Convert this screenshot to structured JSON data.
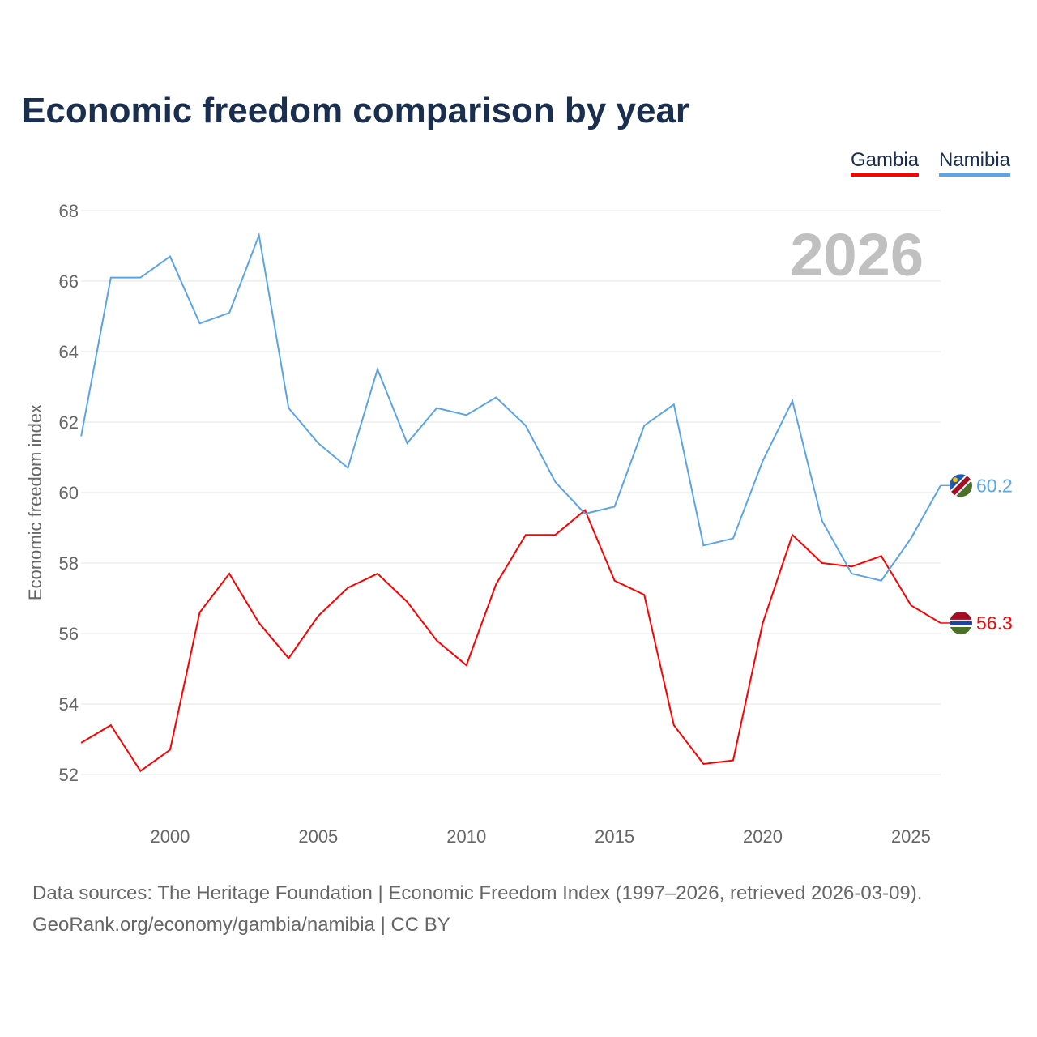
{
  "chart_data": {
    "type": "line",
    "title": "Economic freedom comparison by year",
    "xlabel": "",
    "ylabel": "Economic freedom index",
    "xlim": [
      1997,
      2026
    ],
    "ylim": [
      51,
      68.2
    ],
    "x_ticks": [
      "2000",
      "2005",
      "2010",
      "2015",
      "2020",
      "2025"
    ],
    "y_ticks": [
      "52",
      "54",
      "56",
      "58",
      "60",
      "62",
      "64",
      "66",
      "68"
    ],
    "grid": true,
    "legend_position": "top-right",
    "watermark_year": "2026",
    "x": [
      1997,
      1998,
      1999,
      2000,
      2001,
      2002,
      2003,
      2004,
      2005,
      2006,
      2007,
      2008,
      2009,
      2010,
      2011,
      2012,
      2013,
      2014,
      2015,
      2016,
      2017,
      2018,
      2019,
      2020,
      2021,
      2022,
      2023,
      2024,
      2025,
      2026
    ],
    "series": [
      {
        "name": "Gambia",
        "color": "#ff0000",
        "end_label": "56.3",
        "values": [
          52.9,
          53.4,
          52.1,
          52.7,
          56.6,
          57.7,
          56.3,
          55.3,
          56.5,
          57.3,
          57.7,
          56.9,
          55.8,
          55.1,
          57.4,
          58.8,
          58.8,
          59.5,
          57.5,
          57.1,
          53.4,
          52.3,
          52.4,
          56.3,
          58.8,
          58.0,
          57.9,
          58.2,
          56.8,
          56.3
        ]
      },
      {
        "name": "Namibia",
        "color": "#5ba4e6",
        "end_label": "60.2",
        "values": [
          61.6,
          66.1,
          66.1,
          66.7,
          64.8,
          65.1,
          67.3,
          62.4,
          61.4,
          60.7,
          63.5,
          61.4,
          62.4,
          62.2,
          62.7,
          61.9,
          60.3,
          59.4,
          59.6,
          61.9,
          62.5,
          58.5,
          58.7,
          60.9,
          62.6,
          59.2,
          57.7,
          57.5,
          58.7,
          60.2
        ]
      }
    ]
  },
  "footer": {
    "line1": "Data sources: The Heritage Foundation | Economic Freedom Index (1997–2026, retrieved 2026-03-09).",
    "line2": "GeoRank.org/economy/gambia/namibia | CC BY"
  }
}
